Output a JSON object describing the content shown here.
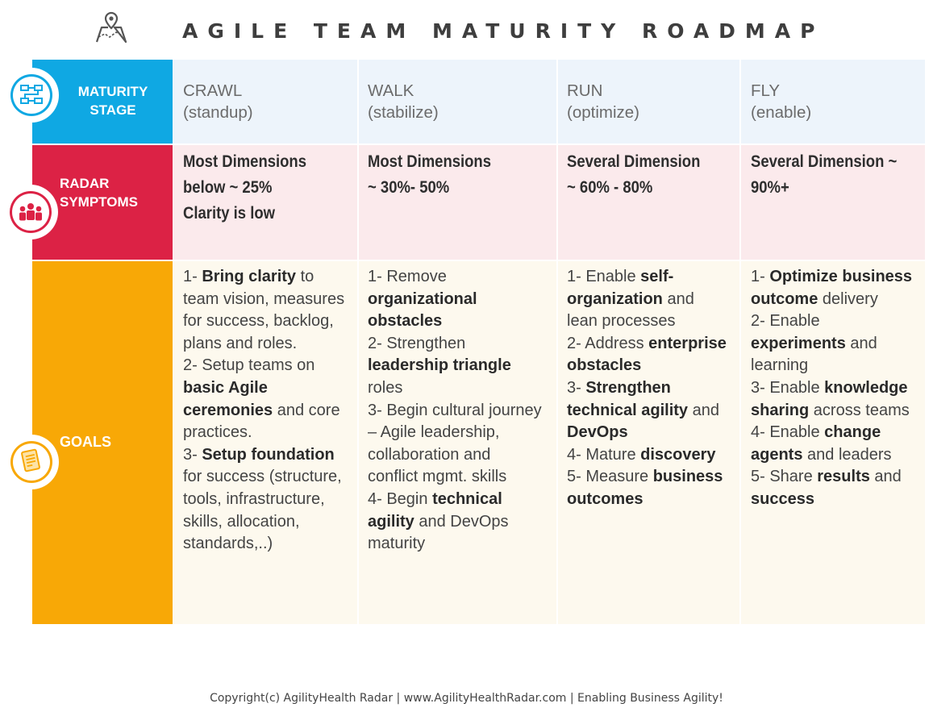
{
  "title": "AGILE TEAM MATURITY ROADMAP",
  "icons": {
    "header": "map-pin-icon",
    "stage": "workflow-icon",
    "symptoms": "team-icon",
    "goals": "checklist-icon"
  },
  "colors": {
    "stage": "#0fa8e3",
    "symptoms": "#dc2245",
    "goals": "#f8a806"
  },
  "rows": {
    "stage_label": [
      "MATURITY",
      "STAGE"
    ],
    "symptoms_label": [
      "RADAR",
      "SYMPTOMS"
    ],
    "goals_label": "GOALS"
  },
  "stages": [
    {
      "name": "CRAWL",
      "sub": "(standup)"
    },
    {
      "name": "WALK",
      "sub": "(stabilize)"
    },
    {
      "name": "RUN",
      "sub": "(optimize)"
    },
    {
      "name": "FLY",
      "sub": "(enable)"
    }
  ],
  "symptoms": [
    [
      "Most Dimensions",
      "below ~ 25%",
      "Clarity is low"
    ],
    [
      "Most Dimensions",
      "~ 30%- 50%"
    ],
    [
      "Several Dimension",
      "~ 60% - 80%"
    ],
    [
      "Several Dimension ~",
      "90%+"
    ]
  ],
  "goals": [
    [
      [
        [
          "1- ",
          false
        ],
        [
          "Bring clarity",
          true
        ],
        [
          " to",
          false
        ]
      ],
      [
        [
          "team vision, measures",
          false
        ]
      ],
      [
        [
          "for success, backlog,",
          false
        ]
      ],
      [
        [
          "plans and roles.",
          false
        ]
      ],
      [
        [
          "2- Setup teams on",
          false
        ]
      ],
      [
        [
          "basic Agile",
          true
        ]
      ],
      [
        [
          "ceremonies",
          true
        ],
        [
          " and core",
          false
        ]
      ],
      [
        [
          "practices.",
          false
        ]
      ],
      [
        [
          "3- ",
          false
        ],
        [
          "Setup foundation",
          true
        ]
      ],
      [
        [
          "for success (structure,",
          false
        ]
      ],
      [
        [
          "tools, infrastructure,",
          false
        ]
      ],
      [
        [
          "skills, allocation,",
          false
        ]
      ],
      [
        [
          "standards,..)",
          false
        ]
      ]
    ],
    [
      [
        [
          "1- Remove",
          false
        ]
      ],
      [
        [
          "organizational",
          true
        ]
      ],
      [
        [
          "obstacles",
          true
        ]
      ],
      [
        [
          "2- Strengthen",
          false
        ]
      ],
      [
        [
          "leadership triangle",
          true
        ]
      ],
      [
        [
          "roles",
          false
        ]
      ],
      [
        [
          "3- Begin cultural journey",
          false
        ]
      ],
      [
        [
          "– Agile leadership,",
          false
        ]
      ],
      [
        [
          "collaboration and",
          false
        ]
      ],
      [
        [
          "conflict mgmt. skills",
          false
        ]
      ],
      [
        [
          "4- Begin ",
          false
        ],
        [
          "technical",
          true
        ]
      ],
      [
        [
          "agility",
          true
        ],
        [
          " and DevOps",
          false
        ]
      ],
      [
        [
          "maturity",
          false
        ]
      ]
    ],
    [
      [
        [
          "1- Enable ",
          false
        ],
        [
          "self-",
          true
        ]
      ],
      [
        [
          "organization",
          true
        ],
        [
          " and",
          false
        ]
      ],
      [
        [
          "lean processes",
          false
        ]
      ],
      [
        [
          "2- Address ",
          false
        ],
        [
          "enterprise",
          true
        ]
      ],
      [
        [
          "obstacles",
          true
        ]
      ],
      [
        [
          "3- ",
          false
        ],
        [
          "Strengthen",
          true
        ]
      ],
      [
        [
          "technical agility",
          true
        ],
        [
          " and",
          false
        ]
      ],
      [
        [
          "DevOps",
          true
        ]
      ],
      [
        [
          "4- Mature ",
          false
        ],
        [
          "discovery",
          true
        ]
      ],
      [
        [
          "5- Measure ",
          false
        ],
        [
          "business",
          true
        ]
      ],
      [
        [
          "outcomes",
          true
        ]
      ]
    ],
    [
      [
        [
          "1- ",
          false
        ],
        [
          "Optimize business",
          true
        ]
      ],
      [
        [
          "outcome",
          true
        ],
        [
          " delivery",
          false
        ]
      ],
      [
        [
          "2- Enable",
          false
        ]
      ],
      [
        [
          "experiments",
          true
        ],
        [
          " and",
          false
        ]
      ],
      [
        [
          "learning",
          false
        ]
      ],
      [
        [
          "3- Enable ",
          false
        ],
        [
          "knowledge",
          true
        ]
      ],
      [
        [
          "sharing",
          true
        ],
        [
          " across teams",
          false
        ]
      ],
      [
        [
          "4- Enable ",
          false
        ],
        [
          "change",
          true
        ]
      ],
      [
        [
          "agents",
          true
        ],
        [
          " and leaders",
          false
        ]
      ],
      [
        [
          "5- Share ",
          false
        ],
        [
          "results",
          true
        ],
        [
          " and",
          false
        ]
      ],
      [
        [
          "success",
          true
        ]
      ]
    ]
  ],
  "footer": "Copyright(c) AgilityHealth Radar | www.AgilityHealthRadar.com | Enabling Business Agility!"
}
